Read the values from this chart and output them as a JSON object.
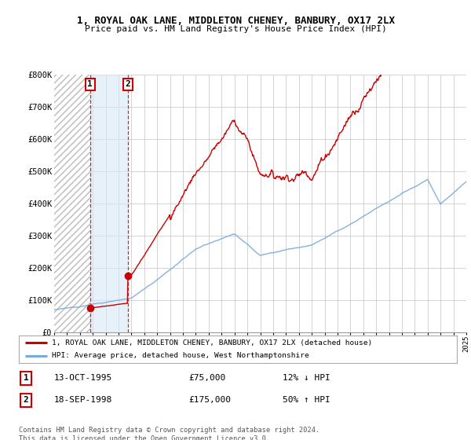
{
  "title_line1": "1, ROYAL OAK LANE, MIDDLETON CHENEY, BANBURY, OX17 2LX",
  "title_line2": "Price paid vs. HM Land Registry's House Price Index (HPI)",
  "ylim": [
    0,
    800000
  ],
  "yticks": [
    0,
    100000,
    200000,
    300000,
    400000,
    500000,
    600000,
    700000,
    800000
  ],
  "ytick_labels": [
    "£0",
    "£100K",
    "£200K",
    "£300K",
    "£400K",
    "£500K",
    "£600K",
    "£700K",
    "£800K"
  ],
  "x_start_year": 1993,
  "x_end_year": 2025,
  "purchase1_year": 1995.79,
  "purchase1_price": 75000,
  "purchase2_year": 1998.72,
  "purchase2_price": 175000,
  "purchase1_date": "13-OCT-1995",
  "purchase1_amount": "£75,000",
  "purchase1_hpi": "12% ↓ HPI",
  "purchase2_date": "18-SEP-1998",
  "purchase2_amount": "£175,000",
  "purchase2_hpi": "50% ↑ HPI",
  "red_line_color": "#cc0000",
  "blue_line_color": "#77aadd",
  "legend_label1": "1, ROYAL OAK LANE, MIDDLETON CHENEY, BANBURY, OX17 2LX (detached house)",
  "legend_label2": "HPI: Average price, detached house, West Northamptonshire",
  "footnote": "Contains HM Land Registry data © Crown copyright and database right 2024.\nThis data is licensed under the Open Government Licence v3.0.",
  "box_color": "#cc0000"
}
